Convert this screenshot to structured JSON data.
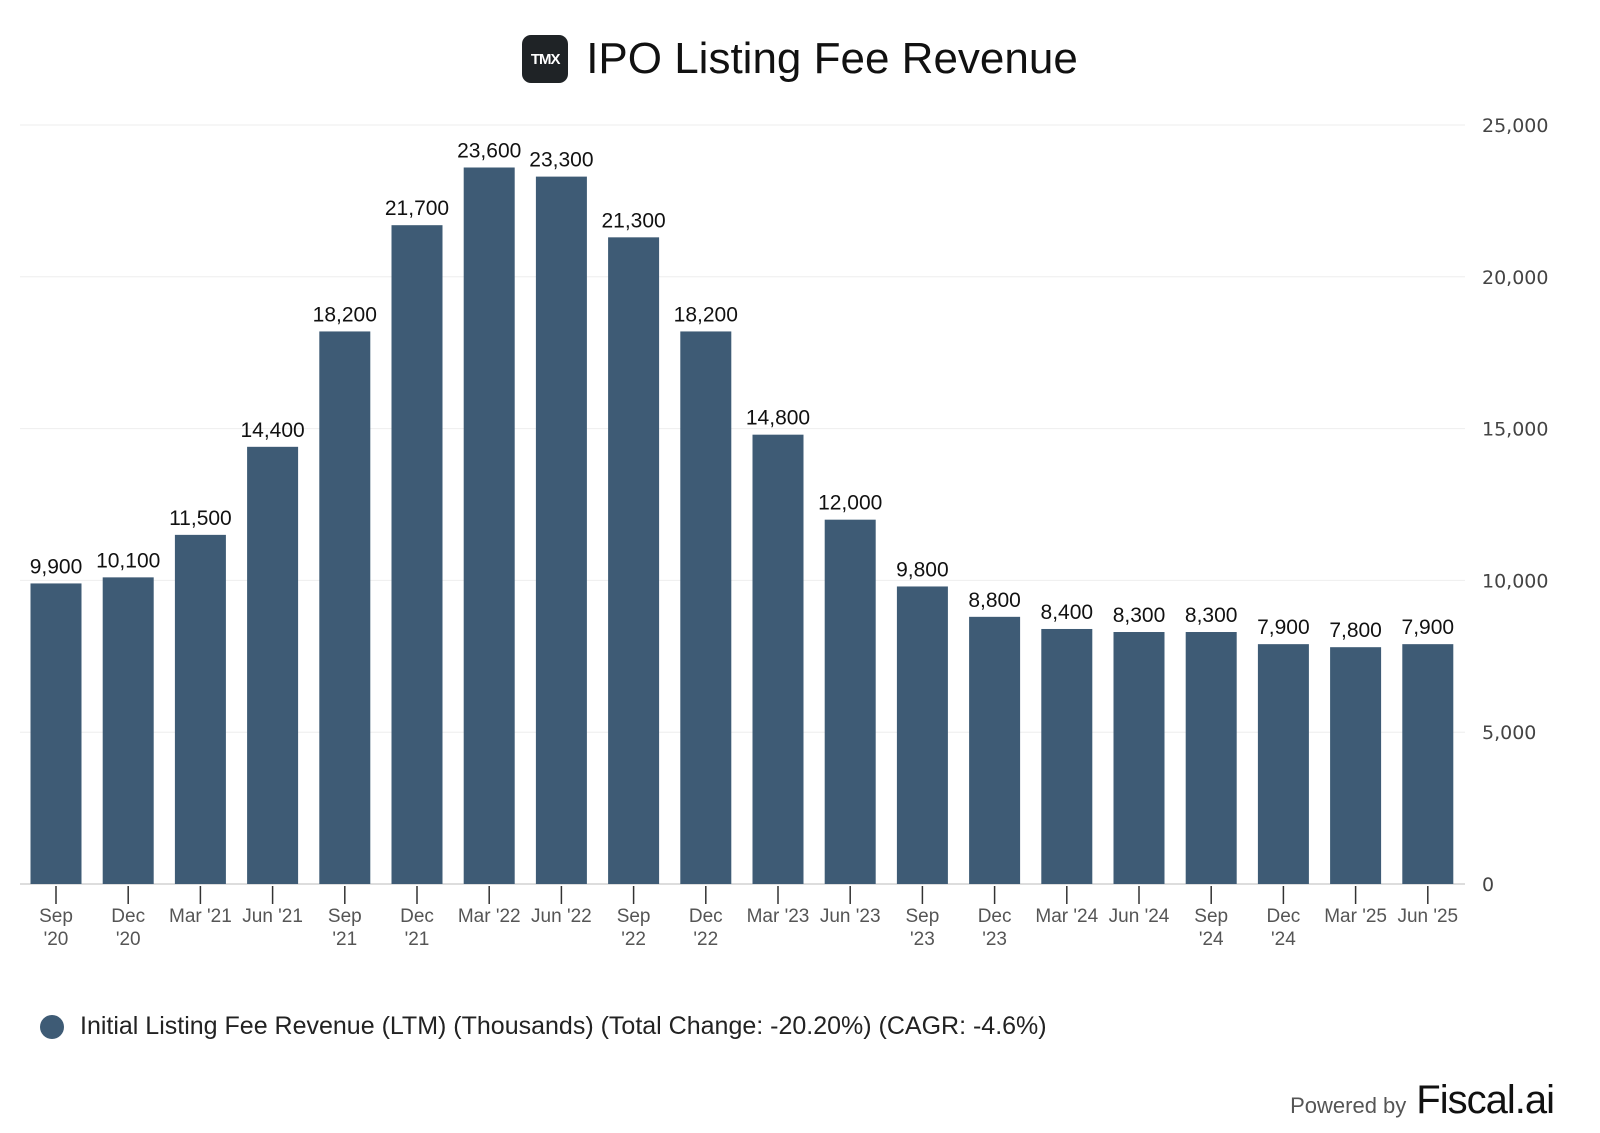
{
  "header": {
    "logo_text": "TMX",
    "title": "IPO Listing Fee Revenue"
  },
  "legend": {
    "label": "Initial Listing Fee Revenue (LTM) (Thousands) (Total Change: -20.20%) (CAGR: -4.6%)"
  },
  "footer": {
    "powered_by": "Powered by",
    "brand": "Fiscal.ai"
  },
  "colors": {
    "bar": "#3e5b75",
    "grid": "#eeeeee",
    "axis": "#dddddd"
  },
  "chart_data": {
    "type": "bar",
    "title": "IPO Listing Fee Revenue",
    "xlabel": "",
    "ylabel": "",
    "ylim": [
      0,
      25000
    ],
    "yticks": [
      0,
      5000,
      10000,
      15000,
      20000,
      25000
    ],
    "ytick_labels": [
      "0",
      "5,000",
      "10,000",
      "15,000",
      "20,000",
      "25,000"
    ],
    "y_axis_side": "right",
    "grid": true,
    "legend_position": "bottom-left",
    "categories": [
      [
        "Sep",
        "'20"
      ],
      [
        "Dec",
        "'20"
      ],
      [
        "Mar '21"
      ],
      [
        "Jun '21"
      ],
      [
        "Sep",
        "'21"
      ],
      [
        "Dec",
        "'21"
      ],
      [
        "Mar '22"
      ],
      [
        "Jun '22"
      ],
      [
        "Sep",
        "'22"
      ],
      [
        "Dec",
        "'22"
      ],
      [
        "Mar '23"
      ],
      [
        "Jun '23"
      ],
      [
        "Sep",
        "'23"
      ],
      [
        "Dec",
        "'23"
      ],
      [
        "Mar '24"
      ],
      [
        "Jun '24"
      ],
      [
        "Sep",
        "'24"
      ],
      [
        "Dec",
        "'24"
      ],
      [
        "Mar '25"
      ],
      [
        "Jun '25"
      ]
    ],
    "series": [
      {
        "name": "Initial Listing Fee Revenue (LTM) (Thousands)",
        "values": [
          9900,
          10100,
          11500,
          14400,
          18200,
          21700,
          23600,
          23300,
          21300,
          18200,
          14800,
          12000,
          9800,
          8800,
          8400,
          8300,
          8300,
          7900,
          7800,
          7900
        ],
        "labels": [
          "9,900",
          "10,100",
          "11,500",
          "14,400",
          "18,200",
          "21,700",
          "23,600",
          "23,300",
          "21,300",
          "18,200",
          "14,800",
          "12,000",
          "9,800",
          "8,800",
          "8,400",
          "8,300",
          "8,300",
          "7,900",
          "7,800",
          "7,900"
        ]
      }
    ]
  }
}
